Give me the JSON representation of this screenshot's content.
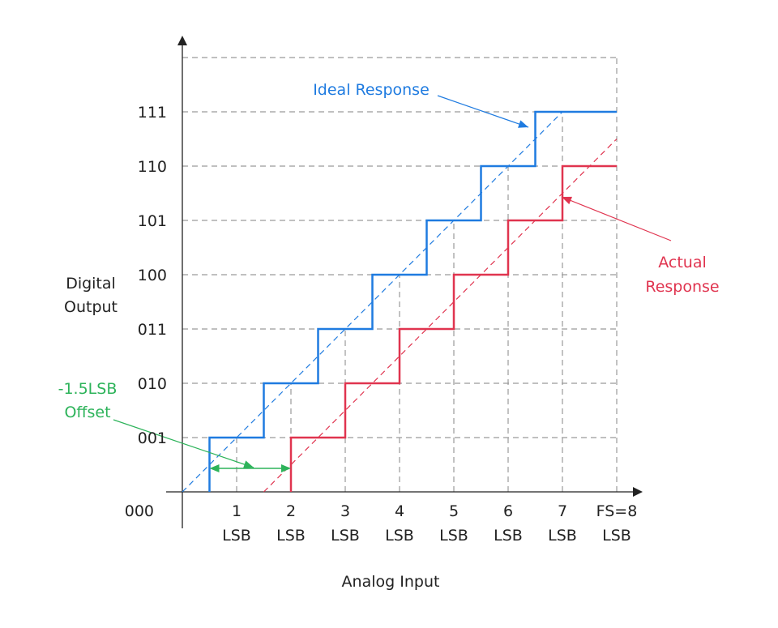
{
  "chart_data": {
    "type": "line",
    "title": "",
    "xlabel": "Analog Input",
    "ylabel_lines": [
      "Digital",
      "Output"
    ],
    "x_ticks": [
      {
        "value": 1,
        "top": "1",
        "bottom": "LSB"
      },
      {
        "value": 2,
        "top": "2",
        "bottom": "LSB"
      },
      {
        "value": 3,
        "top": "3",
        "bottom": "LSB"
      },
      {
        "value": 4,
        "top": "4",
        "bottom": "LSB"
      },
      {
        "value": 5,
        "top": "5",
        "bottom": "LSB"
      },
      {
        "value": 6,
        "top": "6",
        "bottom": "LSB"
      },
      {
        "value": 7,
        "top": "7",
        "bottom": "LSB"
      },
      {
        "value": 8,
        "top": "FS=8",
        "bottom": "LSB"
      }
    ],
    "y_ticks": [
      {
        "value": 0,
        "label": "000"
      },
      {
        "value": 1,
        "label": "001"
      },
      {
        "value": 2,
        "label": "010"
      },
      {
        "value": 3,
        "label": "011"
      },
      {
        "value": 4,
        "label": "100"
      },
      {
        "value": 5,
        "label": "101"
      },
      {
        "value": 6,
        "label": "110"
      },
      {
        "value": 7,
        "label": "111"
      }
    ],
    "xlim": [
      0,
      8
    ],
    "ylim": [
      0,
      8
    ],
    "series": [
      {
        "name": "Ideal Response",
        "color": "#1f7be0",
        "steps": [
          [
            0.5,
            0
          ],
          [
            0.5,
            1
          ],
          [
            1.5,
            1
          ],
          [
            1.5,
            2
          ],
          [
            2.5,
            2
          ],
          [
            2.5,
            3
          ],
          [
            3.5,
            3
          ],
          [
            3.5,
            4
          ],
          [
            4.5,
            4
          ],
          [
            4.5,
            5
          ],
          [
            5.5,
            5
          ],
          [
            5.5,
            6
          ],
          [
            6.5,
            6
          ],
          [
            6.5,
            7
          ],
          [
            8,
            7
          ]
        ],
        "ideal_line": [
          [
            0,
            0
          ],
          [
            7,
            7
          ]
        ]
      },
      {
        "name": "Actual Response",
        "color": "#e0344f",
        "steps": [
          [
            2,
            0
          ],
          [
            2,
            1
          ],
          [
            3,
            1
          ],
          [
            3,
            2
          ],
          [
            4,
            2
          ],
          [
            4,
            3
          ],
          [
            5,
            3
          ],
          [
            5,
            4
          ],
          [
            6,
            4
          ],
          [
            6,
            5
          ],
          [
            7,
            5
          ],
          [
            7,
            6
          ],
          [
            8,
            6
          ]
        ],
        "ideal_line": [
          [
            1.5,
            0
          ],
          [
            8,
            6.5
          ]
        ]
      }
    ],
    "annotations": {
      "ideal_label": "Ideal Response",
      "actual_label_lines": [
        "Actual",
        "Response"
      ],
      "offset_label_lines": [
        "-1.5LSB",
        "Offset"
      ],
      "offset_color": "#2db35a",
      "offset_from": 0.5,
      "offset_to": 2
    }
  }
}
